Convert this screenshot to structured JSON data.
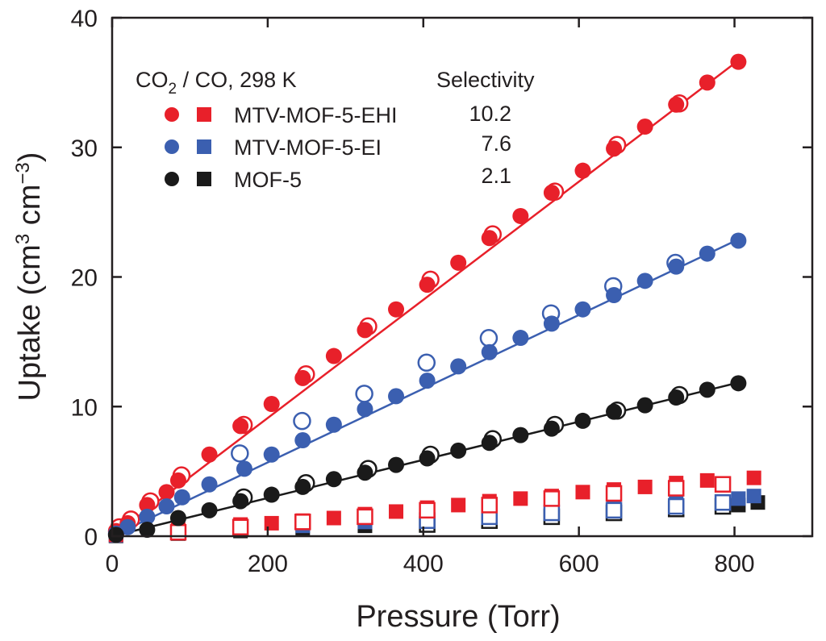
{
  "chart_data": {
    "type": "scatter",
    "title": "",
    "xlabel": "Pressure (Torr)",
    "ylabel": {
      "prefix": "Uptake (cm",
      "sup1": "3",
      "mid": " cm",
      "sup2": "−3",
      "suffix": ")"
    },
    "xlim": [
      0,
      900
    ],
    "ylim": [
      0,
      40
    ],
    "xticks": [
      0,
      200,
      400,
      600,
      800
    ],
    "yticks": [
      0,
      10,
      20,
      30,
      40
    ],
    "tick_labels_x": [
      "0",
      "200",
      "400",
      "600",
      "800"
    ],
    "tick_labels_y": [
      "0",
      "10",
      "20",
      "30",
      "40"
    ],
    "legend": {
      "condition": {
        "prefix": "CO",
        "sub": "2",
        "suffix": " / CO, 298 K"
      },
      "selectivity_header": "Selectivity",
      "placement": "top-left"
    },
    "series": [
      {
        "name": "MTV-MOF-5-EHI",
        "color": "#e8202a",
        "selectivity": "10.2",
        "co2": {
          "adsorption": [
            [
              5,
              0.4
            ],
            [
              20,
              1.0
            ],
            [
              45,
              2.4
            ],
            [
              70,
              3.4
            ],
            [
              85,
              4.3
            ],
            [
              125,
              6.3
            ],
            [
              165,
              8.5
            ],
            [
              205,
              10.2
            ],
            [
              245,
              12.2
            ],
            [
              285,
              13.9
            ],
            [
              325,
              15.9
            ],
            [
              365,
              17.5
            ],
            [
              405,
              19.4
            ],
            [
              445,
              21.1
            ],
            [
              485,
              23.0
            ],
            [
              525,
              24.7
            ],
            [
              565,
              26.5
            ],
            [
              605,
              28.2
            ],
            [
              645,
              29.9
            ],
            [
              685,
              31.6
            ],
            [
              725,
              33.3
            ],
            [
              765,
              35.0
            ],
            [
              805,
              36.6
            ]
          ],
          "desorption": [
            [
              5,
              0.5
            ],
            [
              20,
              1.1
            ],
            [
              45,
              2.5
            ],
            [
              85,
              4.5
            ],
            [
              165,
              8.4
            ],
            [
              245,
              12.3
            ],
            [
              325,
              16.0
            ],
            [
              405,
              19.6
            ],
            [
              485,
              23.1
            ],
            [
              565,
              26.4
            ],
            [
              645,
              30.0
            ],
            [
              725,
              33.2
            ]
          ],
          "fit_end": 36.7
        },
        "co": {
          "adsorption": [
            [
              5,
              0.1
            ],
            [
              85,
              0.5
            ],
            [
              165,
              0.9
            ],
            [
              205,
              1.0
            ],
            [
              245,
              1.2
            ],
            [
              285,
              1.4
            ],
            [
              325,
              1.7
            ],
            [
              365,
              1.9
            ],
            [
              405,
              2.2
            ],
            [
              445,
              2.4
            ],
            [
              485,
              2.7
            ],
            [
              525,
              2.9
            ],
            [
              565,
              3.1
            ],
            [
              605,
              3.4
            ],
            [
              645,
              3.6
            ],
            [
              685,
              3.8
            ],
            [
              725,
              4.1
            ],
            [
              765,
              4.3
            ],
            [
              825,
              4.5
            ]
          ],
          "desorption": [
            [
              85,
              0.3
            ],
            [
              165,
              0.7
            ],
            [
              245,
              1.1
            ],
            [
              325,
              1.5
            ],
            [
              405,
              2.0
            ],
            [
              485,
              2.4
            ],
            [
              565,
              2.9
            ],
            [
              645,
              3.3
            ],
            [
              725,
              3.7
            ],
            [
              785,
              4.0
            ]
          ]
        }
      },
      {
        "name": "MTV-MOF-5-EI",
        "color": "#3b5fb0",
        "selectivity": "7.6",
        "co2": {
          "adsorption": [
            [
              5,
              0.2
            ],
            [
              20,
              0.7
            ],
            [
              45,
              1.5
            ],
            [
              70,
              2.3
            ],
            [
              90,
              3.0
            ],
            [
              125,
              4.0
            ],
            [
              170,
              5.2
            ],
            [
              205,
              6.3
            ],
            [
              245,
              7.4
            ],
            [
              285,
              8.6
            ],
            [
              325,
              9.8
            ],
            [
              365,
              10.8
            ],
            [
              405,
              12.0
            ],
            [
              445,
              13.1
            ],
            [
              485,
              14.2
            ],
            [
              525,
              15.3
            ],
            [
              565,
              16.4
            ],
            [
              605,
              17.5
            ],
            [
              645,
              18.6
            ],
            [
              685,
              19.7
            ],
            [
              725,
              20.8
            ],
            [
              765,
              21.8
            ],
            [
              805,
              22.8
            ]
          ],
          "desorption": [
            [
              160,
              6.2
            ],
            [
              240,
              8.7
            ],
            [
              320,
              10.8
            ],
            [
              400,
              13.2
            ],
            [
              480,
              15.1
            ],
            [
              560,
              17.0
            ],
            [
              640,
              19.1
            ],
            [
              720,
              20.9
            ]
          ],
          "fit_end": 22.9
        },
        "co": {
          "adsorption": [
            [
              5,
              0.05
            ],
            [
              85,
              0.3
            ],
            [
              165,
              0.5
            ],
            [
              245,
              0.8
            ],
            [
              325,
              1.1
            ],
            [
              405,
              1.4
            ],
            [
              485,
              1.7
            ],
            [
              565,
              2.0
            ],
            [
              645,
              2.3
            ],
            [
              725,
              2.6
            ],
            [
              805,
              2.9
            ],
            [
              825,
              3.1
            ]
          ],
          "desorption": [
            [
              405,
              1.2
            ],
            [
              485,
              1.5
            ],
            [
              565,
              1.8
            ],
            [
              645,
              2.0
            ],
            [
              725,
              2.3
            ],
            [
              785,
              2.6
            ]
          ]
        }
      },
      {
        "name": "MOF-5",
        "color": "#1a1a1a",
        "selectivity": "2.1",
        "co2": {
          "adsorption": [
            [
              5,
              0.1
            ],
            [
              45,
              0.5
            ],
            [
              85,
              1.4
            ],
            [
              125,
              2.0
            ],
            [
              165,
              2.7
            ],
            [
              205,
              3.2
            ],
            [
              245,
              3.8
            ],
            [
              285,
              4.4
            ],
            [
              325,
              4.9
            ],
            [
              365,
              5.5
            ],
            [
              405,
              6.0
            ],
            [
              445,
              6.6
            ],
            [
              485,
              7.2
            ],
            [
              525,
              7.8
            ],
            [
              565,
              8.3
            ],
            [
              605,
              8.9
            ],
            [
              645,
              9.6
            ],
            [
              685,
              10.1
            ],
            [
              725,
              10.7
            ],
            [
              765,
              11.3
            ],
            [
              805,
              11.8
            ]
          ],
          "desorption": [
            [
              165,
              2.8
            ],
            [
              245,
              3.9
            ],
            [
              325,
              5.0
            ],
            [
              405,
              6.1
            ],
            [
              485,
              7.3
            ],
            [
              565,
              8.4
            ],
            [
              645,
              9.5
            ],
            [
              725,
              10.7
            ]
          ],
          "fit_end": 11.85
        },
        "co": {
          "adsorption": [
            [
              5,
              0.02
            ],
            [
              85,
              0.2
            ],
            [
              165,
              0.4
            ],
            [
              245,
              0.6
            ],
            [
              325,
              0.8
            ],
            [
              405,
              1.1
            ],
            [
              485,
              1.3
            ],
            [
              565,
              1.6
            ],
            [
              645,
              1.9
            ],
            [
              725,
              2.2
            ],
            [
              805,
              2.4
            ],
            [
              830,
              2.6
            ]
          ],
          "desorption": [
            [
              405,
              0.9
            ],
            [
              485,
              1.2
            ],
            [
              565,
              1.5
            ],
            [
              645,
              1.8
            ],
            [
              725,
              2.1
            ],
            [
              785,
              2.3
            ]
          ]
        }
      }
    ]
  }
}
